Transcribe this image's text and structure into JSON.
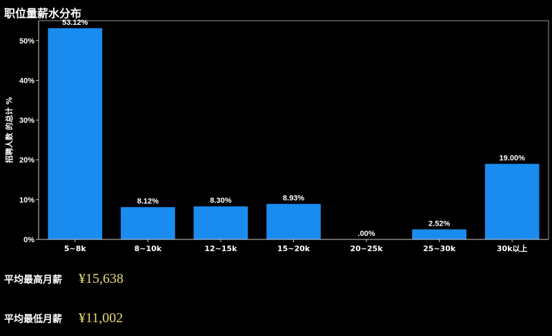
{
  "header": {
    "title": "职位量薪水分布"
  },
  "chart_data": {
    "type": "bar",
    "title": "职位量薪水分布",
    "ylabel": "招聘人数 的总计 %",
    "xlabel": "",
    "ylim": [
      0,
      55
    ],
    "yticks": [
      0,
      10,
      20,
      30,
      40,
      50
    ],
    "ytick_labels": [
      "0%",
      "10%",
      "20%",
      "30%",
      "40%",
      "50%"
    ],
    "categories": [
      "5~8k",
      "8~10k",
      "12~15k",
      "15~20k",
      "20~25k",
      "25~30k",
      "30k以上"
    ],
    "values": [
      53.12,
      8.12,
      8.3,
      8.93,
      0.0,
      2.52,
      19.0
    ],
    "data_labels": [
      "53.12%",
      "8.12%",
      "8.30%",
      "8.93%",
      ".00%",
      "2.52%",
      "19.00%"
    ],
    "bar_color": "#1a8cf0",
    "grid": false
  },
  "stats": {
    "max_label": "平均最高月薪",
    "max_value": "¥15,638",
    "min_label": "平均最低月薪",
    "min_value": "¥11,002"
  }
}
